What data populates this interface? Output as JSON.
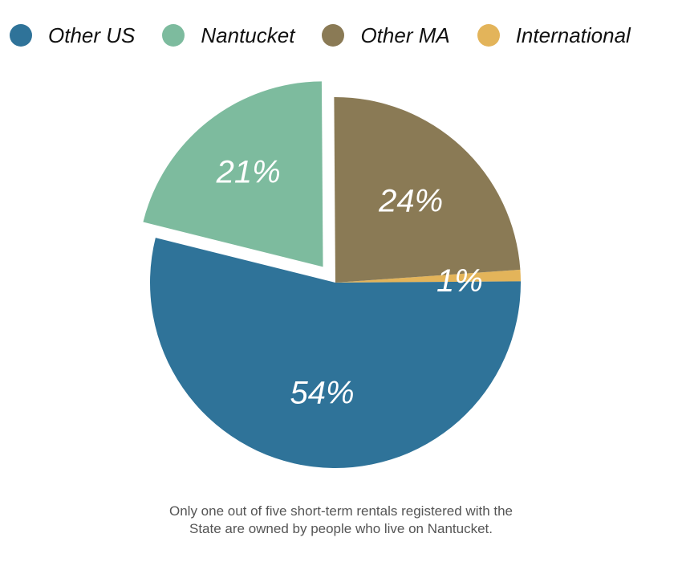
{
  "chart_data": {
    "type": "pie",
    "categories": [
      "Other US",
      "Nantucket",
      "Other MA",
      "International"
    ],
    "values": [
      54,
      21,
      24,
      1
    ],
    "value_labels": [
      "54%",
      "21%",
      "24%",
      "1%"
    ],
    "colors": [
      "#2f7399",
      "#7dbb9e",
      "#8a7a55",
      "#e3b45a"
    ],
    "legend_position": "top",
    "exploded": "Nantucket"
  },
  "caption": {
    "line1": "Only one out of five short-term rentals registered with the",
    "line2": "State are owned by people who live on Nantucket."
  }
}
